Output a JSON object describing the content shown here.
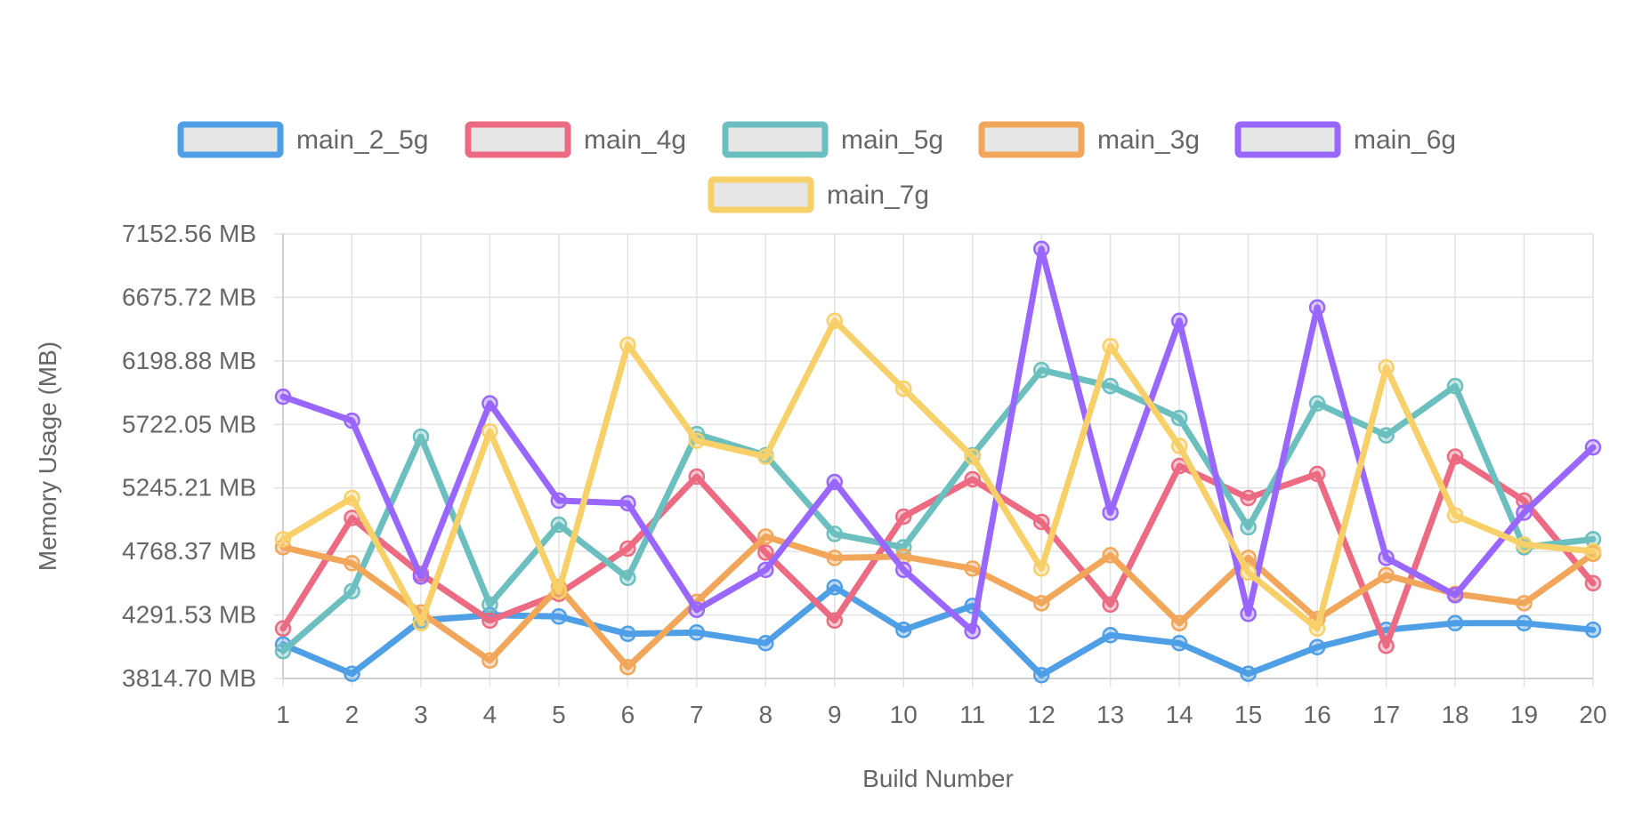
{
  "chart_data": {
    "type": "line",
    "xlabel": "Build Number",
    "ylabel": "Memory Usage (MB)",
    "x": [
      1,
      2,
      3,
      4,
      5,
      6,
      7,
      8,
      9,
      10,
      11,
      12,
      13,
      14,
      15,
      16,
      17,
      18,
      19,
      20
    ],
    "y_ticks": [
      "3814.70 MB",
      "4291.53 MB",
      "4768.37 MB",
      "5245.21 MB",
      "5722.05 MB",
      "6198.88 MB",
      "6675.72 MB",
      "7152.56 MB"
    ],
    "ylim": [
      3814.7,
      7152.56
    ],
    "grid": true,
    "legend_position": "top",
    "series": [
      {
        "name": "main_2_5g",
        "color": "#4e9fe6",
        "values": [
          4070,
          3850,
          4250,
          4290,
          4280,
          4150,
          4160,
          4080,
          4500,
          4180,
          4360,
          3840,
          4140,
          4080,
          3850,
          4050,
          4180,
          4230,
          4230,
          4180
        ]
      },
      {
        "name": "main_4g",
        "color": "#ec6b82",
        "values": [
          4190,
          5020,
          4600,
          4250,
          4450,
          4790,
          5330,
          4760,
          4250,
          5030,
          5310,
          4990,
          4370,
          5410,
          5170,
          5350,
          4060,
          5480,
          5150,
          4530
        ]
      },
      {
        "name": "main_5g",
        "color": "#6cbfbf",
        "values": [
          4020,
          4470,
          5630,
          4370,
          4970,
          4570,
          5650,
          5490,
          4900,
          4800,
          5490,
          6130,
          6010,
          5770,
          4950,
          5880,
          5640,
          6010,
          4800,
          4860
        ]
      },
      {
        "name": "main_3g",
        "color": "#f2a65a",
        "values": [
          4800,
          4680,
          4310,
          3950,
          4500,
          3900,
          4390,
          4880,
          4720,
          4730,
          4640,
          4380,
          4740,
          4230,
          4720,
          4260,
          4590,
          4450,
          4380,
          4750
        ]
      },
      {
        "name": "main_6g",
        "color": "#9966ff",
        "values": [
          5930,
          5750,
          4580,
          5880,
          5150,
          5130,
          4330,
          4630,
          5290,
          4630,
          4170,
          7040,
          5060,
          6500,
          4300,
          6600,
          4720,
          4440,
          5060,
          5550
        ]
      },
      {
        "name": "main_7g",
        "color": "#f7d06a",
        "values": [
          4860,
          5170,
          4230,
          5670,
          4470,
          6320,
          5600,
          5480,
          6500,
          5990,
          5480,
          4640,
          6310,
          5560,
          4610,
          4190,
          6150,
          5040,
          4820,
          4770
        ]
      }
    ]
  }
}
